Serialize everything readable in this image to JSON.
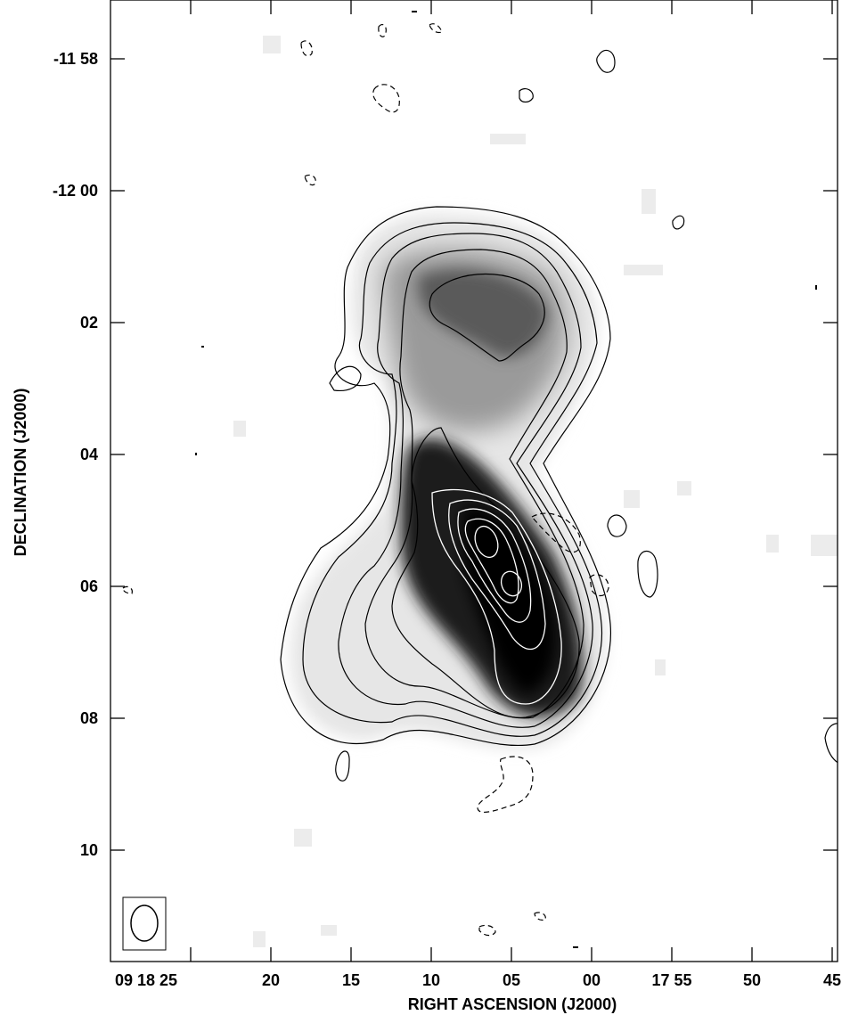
{
  "chart_data": {
    "type": "contour_map",
    "xlabel": "RIGHT ASCENSION (J2000)",
    "ylabel": "DECLINATION (J2000)",
    "x_ticks": [
      {
        "label": "09 18 25",
        "ra_s": 25
      },
      {
        "label": "20",
        "ra_s": 20
      },
      {
        "label": "15",
        "ra_s": 15
      },
      {
        "label": "10",
        "ra_s": 10
      },
      {
        "label": "05",
        "ra_s": 5
      },
      {
        "label": "00",
        "ra_s": 0
      },
      {
        "label": "17 55",
        "ra_s": -5
      },
      {
        "label": "50",
        "ra_s": -10
      },
      {
        "label": "45",
        "ra_s": -15
      }
    ],
    "y_ticks": [
      {
        "label": "-11 58",
        "dec_arcmin": -718
      },
      {
        "label": "-12 00",
        "dec_arcmin": -720
      },
      {
        "label": "02",
        "dec_arcmin": -722
      },
      {
        "label": "04",
        "dec_arcmin": -724
      },
      {
        "label": "06",
        "dec_arcmin": -726
      },
      {
        "label": "08",
        "dec_arcmin": -728
      },
      {
        "label": "10",
        "dec_arcmin": -730
      }
    ],
    "grayscale": true,
    "beam_ellipse": true,
    "colors": {
      "contour_outer": "#000000",
      "contour_inner": "#ffffff",
      "background": "#ffffff"
    }
  }
}
